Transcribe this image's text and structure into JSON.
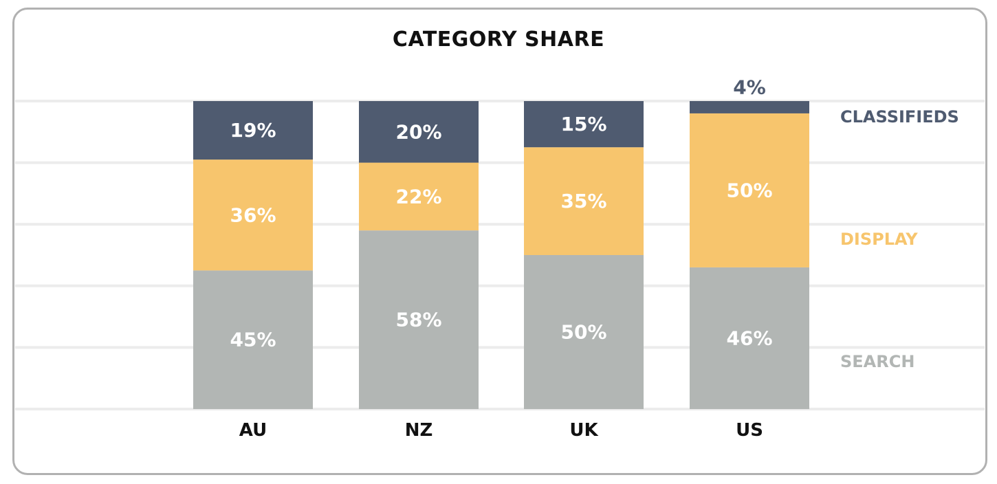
{
  "chart_data": {
    "type": "bar",
    "stacked": true,
    "title": "CATEGORY SHARE",
    "xlabel": "",
    "ylabel": "",
    "ylim": [
      0,
      100
    ],
    "grid": true,
    "legend_placement": "right",
    "categories": [
      "AU",
      "NZ",
      "UK",
      "US"
    ],
    "series": [
      {
        "name": "SEARCH",
        "color": "#b2b6b4",
        "label_color": "#ffffff",
        "values": [
          45,
          58,
          50,
          46
        ],
        "labels": [
          "45%",
          "58%",
          "50%",
          "46%"
        ]
      },
      {
        "name": "DISPLAY",
        "color": "#f7c56d",
        "label_color": "#ffffff",
        "values": [
          36,
          22,
          35,
          50
        ],
        "labels": [
          "36%",
          "22%",
          "35%",
          "50%"
        ]
      },
      {
        "name": "CLASSIFIEDS",
        "color": "#4f5b70",
        "label_color": "#ffffff",
        "values": [
          19,
          20,
          15,
          4
        ],
        "labels": [
          "19%",
          "20%",
          "15%",
          "4%"
        ]
      }
    ],
    "outside_label_color": "#4f5b70"
  }
}
